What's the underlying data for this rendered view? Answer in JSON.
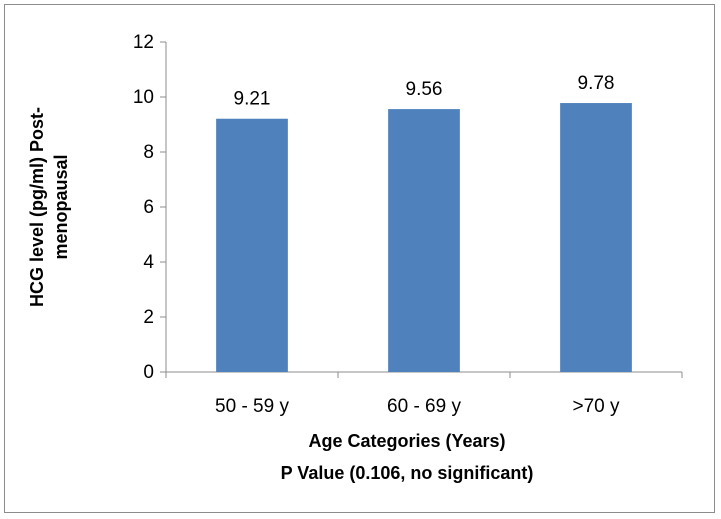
{
  "chart_data": {
    "type": "bar",
    "categories": [
      "50 - 59 y",
      "60  - 69 y",
      ">70 y"
    ],
    "values": [
      9.21,
      9.56,
      9.78
    ],
    "data_labels": [
      "9.21",
      "9.56",
      "9.78"
    ],
    "ylim": [
      0,
      12
    ],
    "yticks": [
      0,
      2,
      4,
      6,
      8,
      10,
      12
    ],
    "ylabel_lines": [
      "HCG level (pg/ml) Post-",
      "menopausal"
    ],
    "xlabel_lines": [
      "Age Categories (Years)",
      "P Value (0.106, no significant)"
    ],
    "grid": false,
    "legend": "none",
    "bar_color": "#4f81bd"
  }
}
